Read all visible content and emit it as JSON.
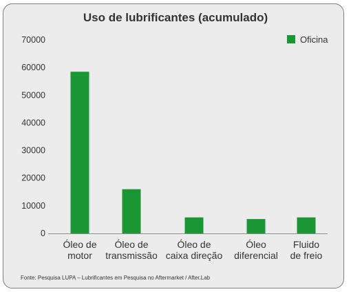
{
  "chart_data": {
    "type": "bar",
    "title": "Uso de lubrificantes (acumulado)",
    "categories": [
      [
        "Óleo de",
        "motor"
      ],
      [
        "Óleo de",
        "transmissão"
      ],
      [
        "Óleo de",
        "caixa direção"
      ],
      [
        "Óleo",
        "diferencial"
      ],
      [
        "Fluido",
        "de freio"
      ]
    ],
    "series": [
      {
        "name": "Oficina",
        "color": "#1a9635",
        "values": [
          58500,
          16000,
          5800,
          5200,
          5800
        ]
      }
    ],
    "ylim": [
      0,
      70000
    ],
    "yticks": [
      0,
      10000,
      20000,
      30000,
      40000,
      50000,
      60000,
      70000
    ],
    "grid": false,
    "legend": "top-right",
    "source": "Fonte: Pesquisa LUPA – Lubrificantes em Pesquisa no Aftermarket / After.Lab"
  }
}
